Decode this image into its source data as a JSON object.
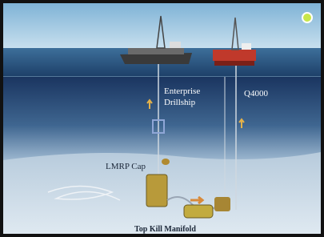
{
  "labels": {
    "enterprise": [
      "Enterprise",
      "Drillship"
    ],
    "q4000": "Q4000",
    "lmrp_cap": "LMRP Cap",
    "top_kill": "Top Kill Manifold"
  }
}
